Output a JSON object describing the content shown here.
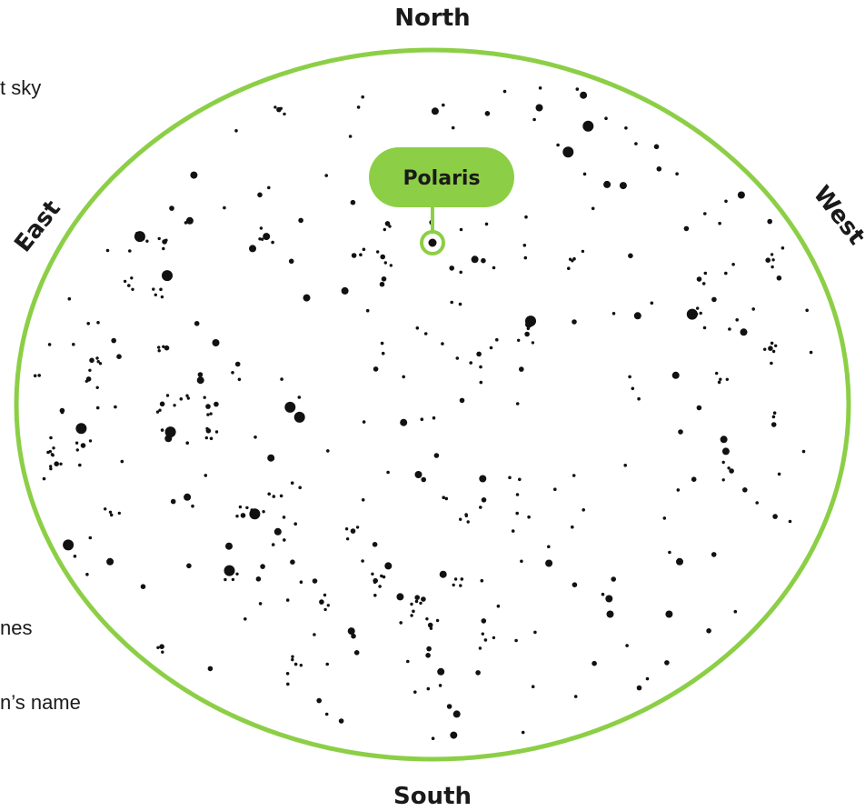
{
  "text_fragments": [
    "t sky",
    "nes",
    "n’s name"
  ],
  "directions": {
    "north": "North",
    "south": "South",
    "east": "East",
    "west": "West"
  },
  "label": "Polaris",
  "colors": {
    "ring": "#8ccf46",
    "label_fill": "#8ccf46",
    "star": "#111111",
    "text": "#1a1a1a",
    "background": "#ffffff"
  }
}
